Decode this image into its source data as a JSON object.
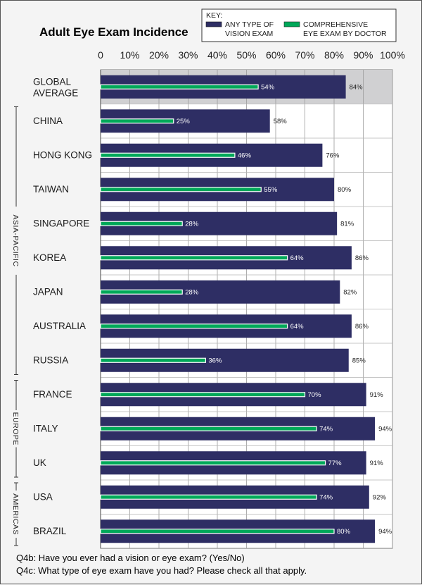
{
  "chart_data": {
    "type": "bar",
    "title": "Adult Eye Exam Incidence",
    "orientation": "horizontal",
    "x_ticks": [
      "0",
      "10%",
      "20%",
      "30%",
      "40%",
      "50%",
      "60%",
      "70%",
      "80%",
      "90%",
      "100%"
    ],
    "xlim": [
      0,
      100
    ],
    "grid": true,
    "legend": {
      "key_label": "KEY:",
      "placement": "top-right",
      "entries": [
        {
          "name": "ANY TYPE OF VISION EXAM",
          "lines": [
            "ANY TYPE OF",
            "VISION EXAM"
          ],
          "color": "#2e2e64"
        },
        {
          "name": "COMPREHENSIVE EYE EXAM BY DOCTOR",
          "lines": [
            "COMPREHENSIVE",
            "EYE EXAM BY DOCTOR"
          ],
          "color": "#00a859"
        }
      ]
    },
    "categories": [
      {
        "name": "GLOBAL AVERAGE",
        "lines": [
          "GLOBAL",
          "AVERAGE"
        ],
        "highlight": true
      },
      {
        "name": "CHINA",
        "lines": [
          "CHINA"
        ]
      },
      {
        "name": "HONG KONG",
        "lines": [
          "HONG KONG"
        ]
      },
      {
        "name": "TAIWAN",
        "lines": [
          "TAIWAN"
        ]
      },
      {
        "name": "SINGAPORE",
        "lines": [
          "SINGAPORE"
        ]
      },
      {
        "name": "KOREA",
        "lines": [
          "KOREA"
        ]
      },
      {
        "name": "JAPAN",
        "lines": [
          "JAPAN"
        ]
      },
      {
        "name": "AUSTRALIA",
        "lines": [
          "AUSTRALIA"
        ]
      },
      {
        "name": "RUSSIA",
        "lines": [
          "RUSSIA"
        ]
      },
      {
        "name": "FRANCE",
        "lines": [
          "FRANCE"
        ]
      },
      {
        "name": "ITALY",
        "lines": [
          "ITALY"
        ]
      },
      {
        "name": "UK",
        "lines": [
          "UK"
        ]
      },
      {
        "name": "USA",
        "lines": [
          "USA"
        ]
      },
      {
        "name": "BRAZIL",
        "lines": [
          "BRAZIL"
        ]
      }
    ],
    "series": [
      {
        "name": "ANY TYPE OF VISION EXAM",
        "color": "#2e2e64",
        "values": [
          84,
          58,
          76,
          80,
          81,
          86,
          82,
          86,
          85,
          91,
          94,
          91,
          92,
          94
        ],
        "labels": [
          "84%",
          "58%",
          "76%",
          "80%",
          "81%",
          "86%",
          "82%",
          "86%",
          "85%",
          "91%",
          "94%",
          "91%",
          "92%",
          "94%"
        ]
      },
      {
        "name": "COMPREHENSIVE EYE EXAM BY DOCTOR",
        "color": "#00a859",
        "values": [
          54,
          25,
          46,
          55,
          28,
          64,
          28,
          64,
          36,
          70,
          74,
          77,
          74,
          80
        ],
        "labels": [
          "54%",
          "25%",
          "46%",
          "55%",
          "28%",
          "64%",
          "28%",
          "64%",
          "36%",
          "70%",
          "74%",
          "77%",
          "74%",
          "80%"
        ]
      }
    ],
    "region_groups": [
      {
        "label": "ASIA-PACIFIC",
        "from": 1,
        "to": 8
      },
      {
        "label": "EUROPE",
        "from": 9,
        "to": 11
      },
      {
        "label": "AMERICAS",
        "from": 12,
        "to": 13
      }
    ]
  },
  "footnotes": [
    "Q4b: Have you ever had a vision or eye exam?   (Yes/No)",
    "Q4c: What type of eye exam have you had?   Please check all that apply."
  ]
}
